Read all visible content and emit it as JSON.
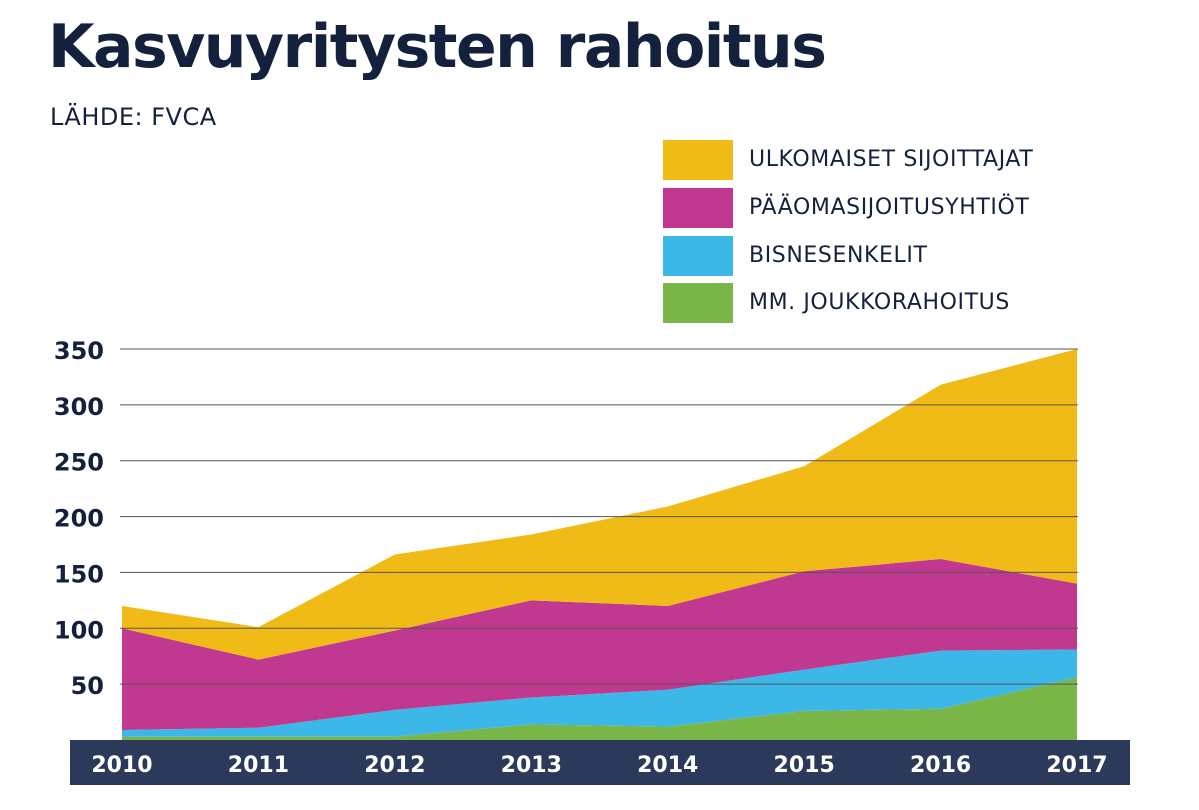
{
  "title": "Kasvuyritysten rahoitus",
  "source": "LÄHDE: FVCA",
  "chart_data": {
    "type": "area",
    "stacked": true,
    "title": "Kasvuyritysten rahoitus",
    "subtitle": "LÄHDE: FVCA",
    "x": [
      "2010",
      "2011",
      "2012",
      "2013",
      "2014",
      "2015",
      "2016",
      "2017"
    ],
    "series": [
      {
        "name": "MM. JOUKKORAHOITUS",
        "color": "#7ab648",
        "values": [
          3,
          3,
          3,
          14,
          12,
          26,
          28,
          56
        ]
      },
      {
        "name": "BISNESENKELIT",
        "color": "#3bb8e8",
        "values": [
          6,
          8,
          24,
          24,
          33,
          37,
          52,
          25
        ]
      },
      {
        "name": "PÄÄOMASIJOITUSYHTIÖT",
        "color": "#c13890",
        "values": [
          91,
          61,
          71,
          87,
          75,
          88,
          82,
          59
        ]
      },
      {
        "name": "ULKOMAISET SIJOITTAJAT",
        "color": "#f0bb17",
        "values": [
          20,
          29,
          68,
          59,
          89,
          94,
          156,
          210
        ]
      }
    ],
    "legend_order": [
      "ULKOMAISET SIJOITTAJAT",
      "PÄÄOMASIJOITUSYHTIÖT",
      "BISNESENKELIT",
      "MM. JOUKKORAHOITUS"
    ],
    "y_ticks": [
      "50",
      "100",
      "150",
      "200",
      "250",
      "300",
      "350"
    ],
    "ylim": [
      0,
      350
    ],
    "grid": true,
    "legend_position": "top-right",
    "colors": {
      "text": "#14213d",
      "axis_band": "#2b3a5a",
      "axis_text": "#ffffff",
      "grid": "#555555"
    }
  }
}
